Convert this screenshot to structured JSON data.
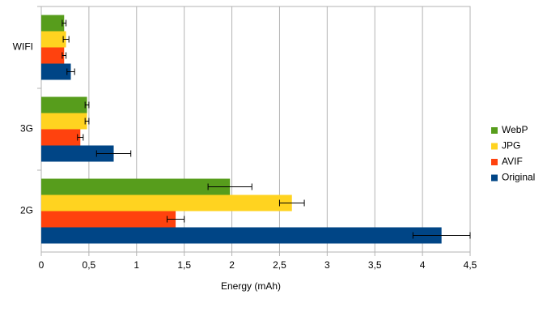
{
  "chart_data": {
    "type": "hbar",
    "xlabel": "Energy (mAh)",
    "categories": [
      "WIFI",
      "3G",
      "2G"
    ],
    "series": [
      {
        "name": "WebP",
        "color": "#579d1c",
        "values": [
          0.24,
          0.48,
          1.98
        ],
        "errors": [
          0.02,
          0.02,
          0.23
        ]
      },
      {
        "name": "JPG",
        "color": "#ffd320",
        "values": [
          0.26,
          0.48,
          2.63
        ],
        "errors": [
          0.03,
          0.02,
          0.13
        ]
      },
      {
        "name": "AVIF",
        "color": "#ff420e",
        "values": [
          0.24,
          0.41,
          1.41
        ],
        "errors": [
          0.02,
          0.03,
          0.09
        ]
      },
      {
        "name": "Original",
        "color": "#004586",
        "values": [
          0.31,
          0.76,
          4.2
        ],
        "errors": [
          0.04,
          0.18,
          0.3
        ]
      }
    ],
    "xlim": [
      0,
      4.5
    ],
    "xticks": [
      0,
      {
        "value": 0.5,
        "label": "0,5"
      },
      1,
      {
        "value": 1.5,
        "label": "1,5"
      },
      2,
      {
        "value": 2.5,
        "label": "2,5"
      },
      3,
      {
        "value": 3.5,
        "label": "3,5"
      },
      4,
      {
        "value": 4.5,
        "label": "4,5"
      }
    ],
    "grid": true,
    "legend": "right"
  }
}
